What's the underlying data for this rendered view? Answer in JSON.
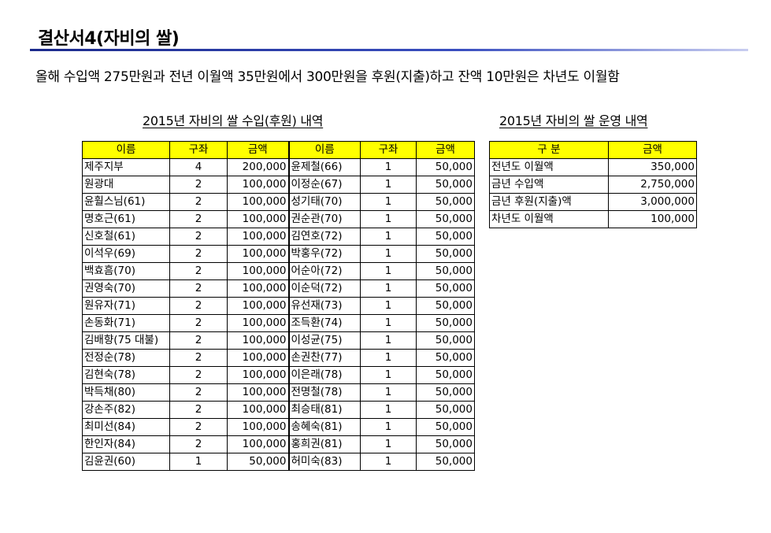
{
  "title": "결산서4(자비의 쌀)",
  "summary": "올해 수입액 275만원과 전년 이월액 35만원에서 300만원을 후원(지출)하고 잔액 10만원은 차년도 이월함",
  "income": {
    "caption": "2015년 자비의 쌀 수입(후원) 내역",
    "headers": [
      "이름",
      "구좌",
      "금액",
      "이름",
      "구좌",
      "금액"
    ],
    "rows": [
      [
        "제주지부",
        "4",
        "200,000",
        "윤제철(66)",
        "1",
        "50,000"
      ],
      [
        "원광대",
        "2",
        "100,000",
        "이정순(67)",
        "1",
        "50,000"
      ],
      [
        "윤훨스님(61)",
        "2",
        "100,000",
        "성기태(70)",
        "1",
        "50,000"
      ],
      [
        "명호근(61)",
        "2",
        "100,000",
        "권순관(70)",
        "1",
        "50,000"
      ],
      [
        "신호철(61)",
        "2",
        "100,000",
        "김연호(72)",
        "1",
        "50,000"
      ],
      [
        "이석우(69)",
        "2",
        "100,000",
        "박홍우(72)",
        "1",
        "50,000"
      ],
      [
        "백효흠(70)",
        "2",
        "100,000",
        "어순아(72)",
        "1",
        "50,000"
      ],
      [
        "권영숙(70)",
        "2",
        "100,000",
        "이순덕(72)",
        "1",
        "50,000"
      ],
      [
        "원유자(71)",
        "2",
        "100,000",
        "유선재(73)",
        "1",
        "50,000"
      ],
      [
        "손동화(71)",
        "2",
        "100,000",
        "조득환(74)",
        "1",
        "50,000"
      ],
      [
        "김배향(75 대불)",
        "2",
        "100,000",
        "이성균(75)",
        "1",
        "50,000"
      ],
      [
        "전정순(78)",
        "2",
        "100,000",
        "손권찬(77)",
        "1",
        "50,000"
      ],
      [
        "김현숙(78)",
        "2",
        "100,000",
        "이은래(78)",
        "1",
        "50,000"
      ],
      [
        "박득채(80)",
        "2",
        "100,000",
        "전명철(78)",
        "1",
        "50,000"
      ],
      [
        "강손주(82)",
        "2",
        "100,000",
        "최승태(81)",
        "1",
        "50,000"
      ],
      [
        "최미선(84)",
        "2",
        "100,000",
        "송혜숙(81)",
        "1",
        "50,000"
      ],
      [
        "한인자(84)",
        "2",
        "100,000",
        "홍희권(81)",
        "1",
        "50,000"
      ],
      [
        "김윤권(60)",
        "1",
        "50,000",
        "허미숙(83)",
        "1",
        "50,000"
      ]
    ]
  },
  "operations": {
    "caption": "2015년 자비의 쌀 운영 내역",
    "headers": [
      "구 분",
      "금액"
    ],
    "rows": [
      [
        "전년도 이월액",
        "350,000"
      ],
      [
        "금년 수입액",
        "2,750,000"
      ],
      [
        "금년 후원(지출)액",
        "3,000,000"
      ],
      [
        "차년도 이월액",
        "100,000"
      ]
    ]
  }
}
